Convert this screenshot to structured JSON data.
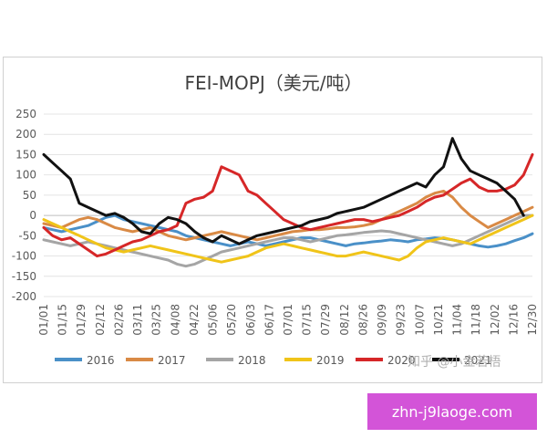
{
  "watermark": "知乎 @小金若梧",
  "banner": {
    "text": "zhn-j9laoge.com"
  },
  "chart_data": {
    "type": "line",
    "title": "FEI-MOPJ（美元/吨）",
    "xlabel": "",
    "ylabel": "",
    "ylim": [
      -200,
      250
    ],
    "yticks": [
      -200,
      -150,
      -100,
      -50,
      0,
      50,
      100,
      150,
      200,
      250
    ],
    "x_ticks": [
      "01/01",
      "01/15",
      "01/29",
      "02/12",
      "02/26",
      "03/11",
      "03/25",
      "04/08",
      "04/22",
      "05/06",
      "05/20",
      "06/03",
      "06/17",
      "07/01",
      "07/15",
      "07/29",
      "08/12",
      "08/26",
      "09/09",
      "09/23",
      "10/07",
      "10/21",
      "11/04",
      "11/18",
      "12/02",
      "12/16",
      "12/30"
    ],
    "grid": true,
    "legend": "bottom",
    "series": [
      {
        "name": "2016",
        "color": "#4a90c8",
        "values": [
          -30,
          -35,
          -40,
          -35,
          -30,
          -25,
          -15,
          -5,
          0,
          -10,
          -15,
          -20,
          -25,
          -30,
          -35,
          -40,
          -50,
          -55,
          -60,
          -65,
          -70,
          -75,
          -70,
          -65,
          -70,
          -75,
          -70,
          -65,
          -60,
          -55,
          -55,
          -60,
          -65,
          -70,
          -75,
          -70,
          -68,
          -65,
          -63,
          -60,
          -62,
          -65,
          -60,
          -58,
          -55,
          -57,
          -60,
          -65,
          -70,
          -75,
          -78,
          -75,
          -70,
          -62,
          -55,
          -45
        ]
      },
      {
        "name": "2017",
        "color": "#d98a45",
        "values": [
          -20,
          -25,
          -30,
          -20,
          -10,
          -5,
          -10,
          -20,
          -30,
          -35,
          -40,
          -35,
          -30,
          -40,
          -50,
          -55,
          -60,
          -55,
          -50,
          -45,
          -40,
          -45,
          -50,
          -55,
          -60,
          -55,
          -50,
          -45,
          -40,
          -38,
          -35,
          -35,
          -33,
          -30,
          -30,
          -28,
          -25,
          -20,
          -10,
          0,
          10,
          20,
          30,
          45,
          55,
          60,
          45,
          20,
          0,
          -15,
          -30,
          -20,
          -10,
          0,
          10,
          20
        ]
      },
      {
        "name": "2018",
        "color": "#a5a5a5",
        "values": [
          -60,
          -65,
          -70,
          -75,
          -70,
          -65,
          -70,
          -75,
          -80,
          -85,
          -90,
          -95,
          -100,
          -105,
          -110,
          -120,
          -125,
          -120,
          -110,
          -100,
          -90,
          -85,
          -80,
          -75,
          -70,
          -65,
          -60,
          -55,
          -55,
          -60,
          -65,
          -60,
          -55,
          -50,
          -48,
          -45,
          -42,
          -40,
          -38,
          -40,
          -45,
          -50,
          -55,
          -60,
          -65,
          -70,
          -75,
          -70,
          -60,
          -50,
          -40,
          -30,
          -20,
          -10,
          0,
          0
        ]
      },
      {
        "name": "2019",
        "color": "#f0c419",
        "values": [
          -10,
          -20,
          -30,
          -40,
          -50,
          -60,
          -70,
          -80,
          -85,
          -90,
          -85,
          -80,
          -75,
          -80,
          -85,
          -90,
          -95,
          -100,
          -105,
          -110,
          -115,
          -110,
          -105,
          -100,
          -90,
          -80,
          -75,
          -70,
          -75,
          -80,
          -85,
          -90,
          -95,
          -100,
          -100,
          -95,
          -90,
          -95,
          -100,
          -105,
          -110,
          -100,
          -80,
          -65,
          -60,
          -55,
          -60,
          -65,
          -70,
          -60,
          -50,
          -40,
          -30,
          -20,
          -10,
          0
        ]
      },
      {
        "name": "2020",
        "color": "#d62728",
        "values": [
          -30,
          -50,
          -60,
          -55,
          -70,
          -85,
          -100,
          -95,
          -85,
          -75,
          -65,
          -60,
          -50,
          -40,
          -35,
          -25,
          30,
          40,
          45,
          60,
          120,
          110,
          100,
          60,
          50,
          30,
          10,
          -10,
          -20,
          -30,
          -35,
          -30,
          -25,
          -20,
          -15,
          -10,
          -10,
          -15,
          -10,
          -5,
          0,
          10,
          20,
          35,
          45,
          50,
          65,
          80,
          90,
          70,
          60,
          60,
          65,
          75,
          100,
          150
        ]
      },
      {
        "name": "2021",
        "color": "#111111",
        "values": [
          150,
          130,
          110,
          90,
          30,
          20,
          10,
          0,
          5,
          -5,
          -20,
          -40,
          -45,
          -20,
          -5,
          -10,
          -20,
          -40,
          -55,
          -65,
          -50,
          -60,
          -70,
          -60,
          -50,
          -45,
          -40,
          -35,
          -30,
          -25,
          -15,
          -10,
          -5,
          5,
          10,
          15,
          20,
          30,
          40,
          50,
          60,
          70,
          80,
          70,
          100,
          120,
          190,
          140,
          110,
          100,
          90,
          80,
          60,
          40,
          0,
          null
        ]
      }
    ]
  }
}
